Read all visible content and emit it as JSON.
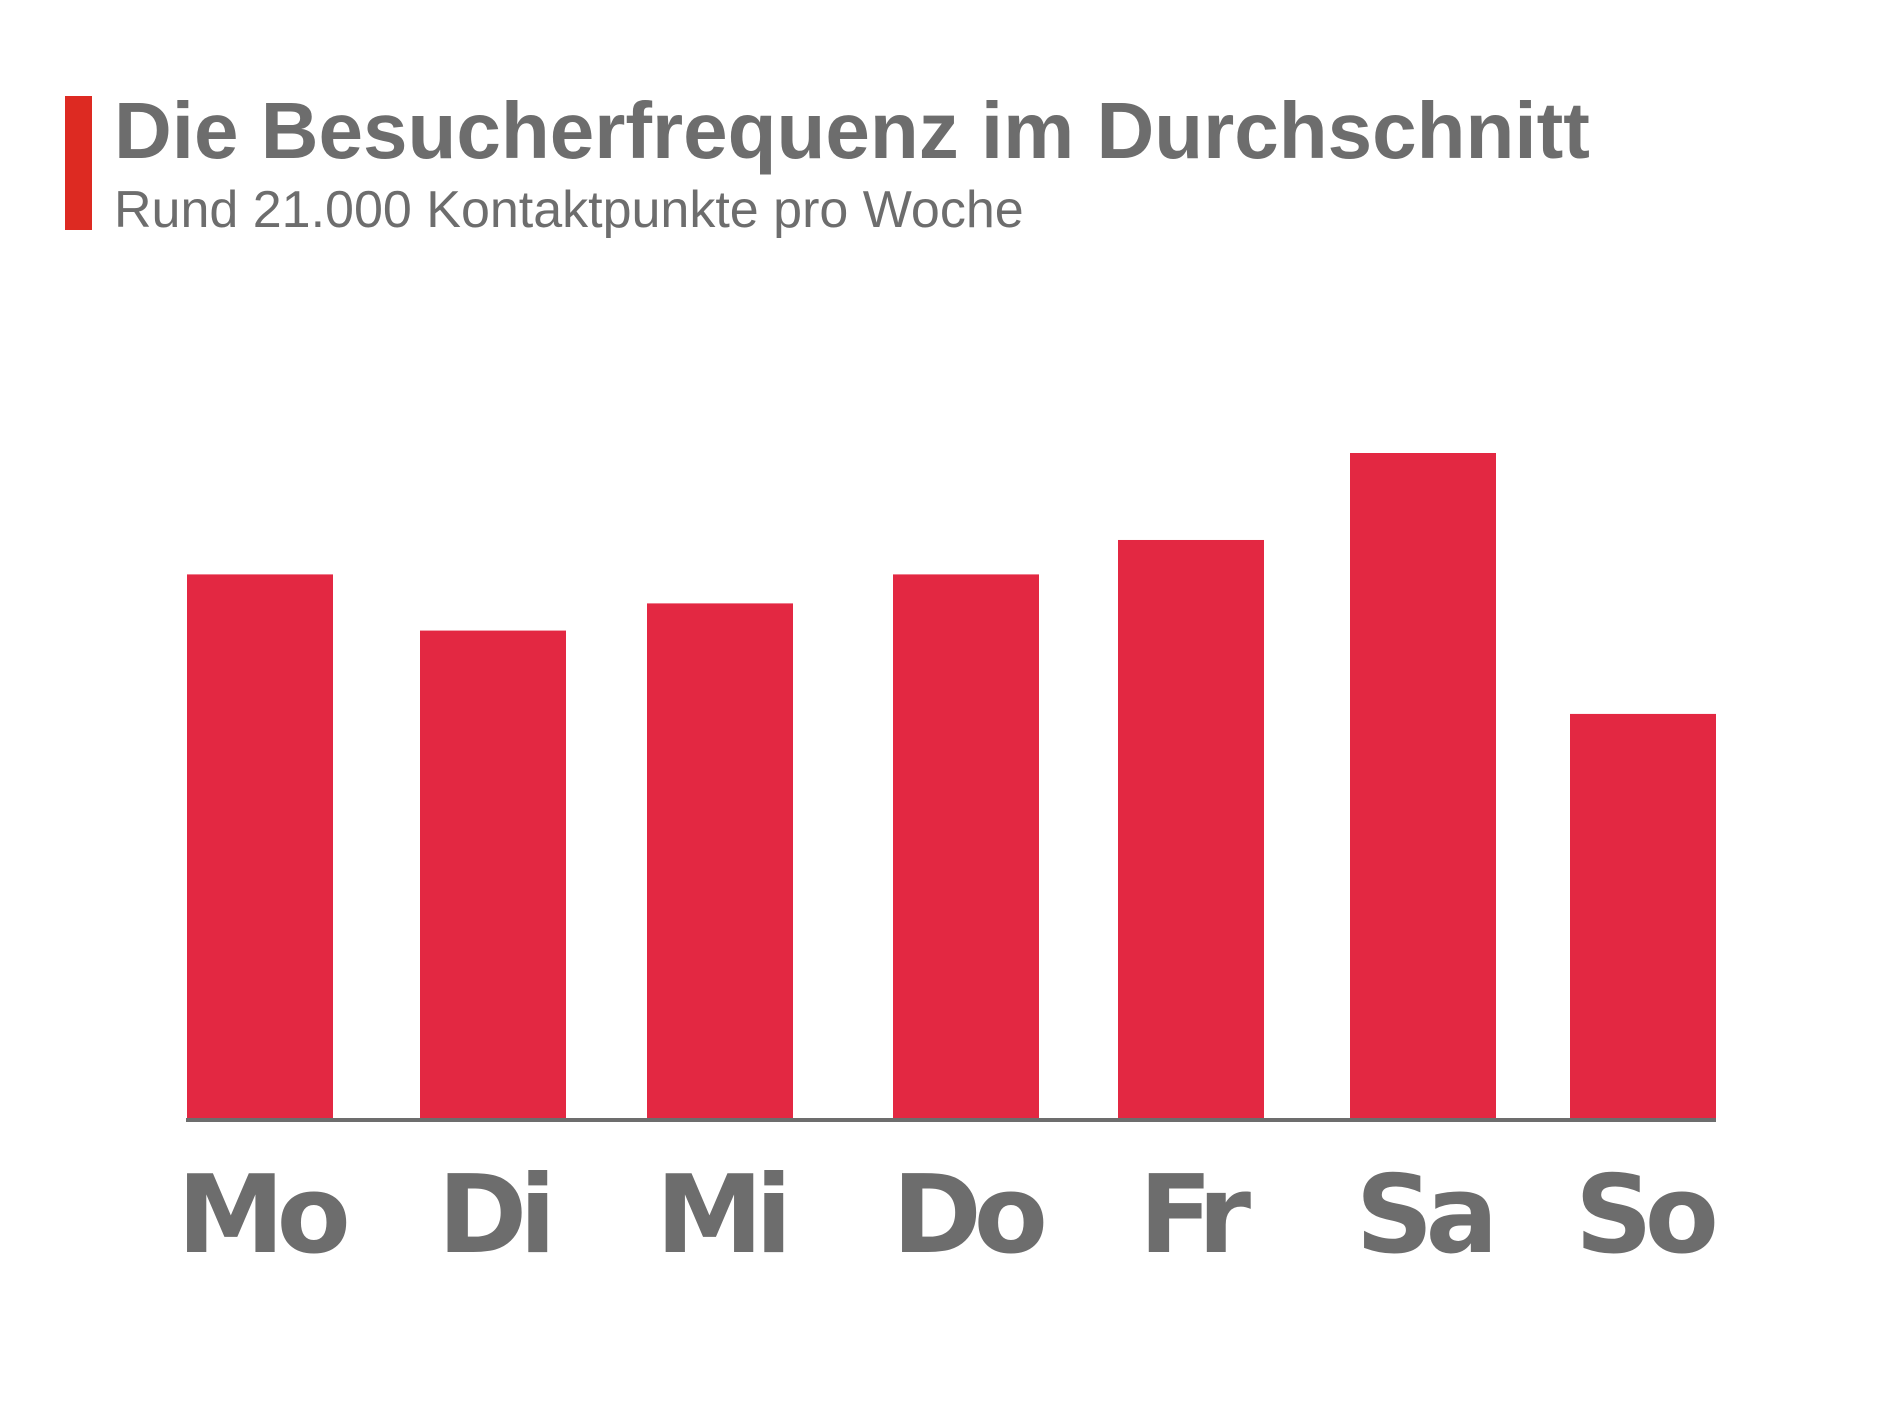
{
  "title": "Die Besucherfrequenz im Durchschnitt",
  "subtitle": "Rund 21.000 Kontaktpunkte pro Woche",
  "colors": {
    "accent": "#dd2a22",
    "bar": "#e32842",
    "text": "#6d6d6d",
    "axis": "#6d6d6d"
  },
  "chart_data": {
    "type": "bar",
    "title": "Die Besucherfrequenz im Durchschnitt",
    "subtitle": "Rund 21.000 Kontaktpunkte pro Woche",
    "xlabel": "",
    "ylabel": "",
    "categories": [
      "Mo",
      "Di",
      "Mi",
      "Do",
      "Fr",
      "Sa",
      "So"
    ],
    "values": [
      3000,
      2690,
      2840,
      3000,
      3190,
      3670,
      2230
    ],
    "ylim": [
      0,
      4200
    ],
    "grid": false,
    "legend": "none"
  }
}
